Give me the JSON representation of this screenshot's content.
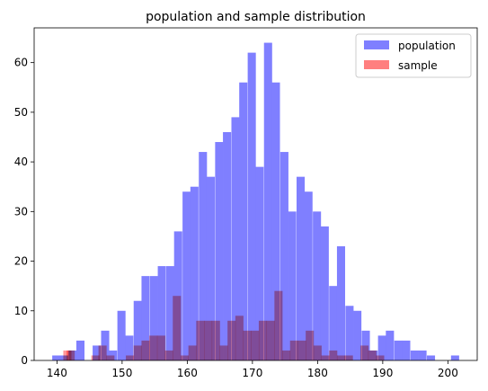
{
  "chart_data": {
    "type": "bar",
    "title": "population and sample distribution",
    "xlabel": "",
    "ylabel": "",
    "xlim": [
      136.5,
      204.5
    ],
    "ylim": [
      0,
      67
    ],
    "bin_width": 1.25,
    "xticks": [
      140,
      150,
      160,
      170,
      180,
      190,
      200
    ],
    "yticks": [
      0,
      10,
      20,
      30,
      40,
      50,
      60
    ],
    "grid": false,
    "legend": "top-right",
    "series": [
      {
        "name": "population",
        "color": "#7f7fff",
        "x": [
          139.9,
          141.1,
          142.4,
          143.6,
          144.9,
          146.1,
          147.4,
          148.6,
          149.9,
          151.1,
          152.4,
          153.6,
          154.9,
          156.1,
          157.4,
          158.6,
          159.9,
          161.1,
          162.4,
          163.6,
          164.9,
          166.1,
          167.4,
          168.6,
          169.9,
          171.1,
          172.4,
          173.6,
          174.9,
          176.1,
          177.4,
          178.6,
          179.9,
          181.1,
          182.4,
          183.6,
          184.9,
          186.1,
          187.4,
          188.6,
          189.9,
          191.1,
          192.4,
          193.6,
          194.9,
          196.1,
          197.4,
          198.6,
          199.9,
          201.1
        ],
        "values": [
          1,
          1,
          2,
          4,
          0,
          3,
          6,
          2,
          10,
          5,
          12,
          17,
          17,
          19,
          19,
          26,
          34,
          35,
          42,
          37,
          44,
          46,
          49,
          56,
          62,
          39,
          64,
          56,
          42,
          30,
          37,
          34,
          30,
          27,
          15,
          23,
          11,
          10,
          6,
          2,
          5,
          6,
          4,
          4,
          2,
          2,
          1,
          0,
          0,
          1
        ]
      },
      {
        "name": "sample",
        "color": "#ff7f7f",
        "x": [
          141.6,
          142.1,
          145.9,
          147.0,
          148.2,
          151.2,
          152.4,
          153.6,
          154.8,
          156.0,
          157.2,
          158.4,
          159.6,
          160.8,
          162.0,
          163.2,
          164.4,
          165.6,
          166.8,
          168.0,
          169.2,
          170.4,
          171.6,
          172.8,
          174.0,
          175.2,
          176.4,
          177.6,
          178.8,
          180.0,
          181.2,
          182.4,
          183.6,
          184.8,
          186.0,
          187.2,
          188.4,
          189.6
        ],
        "values": [
          2,
          2,
          1,
          3,
          1,
          1,
          3,
          4,
          5,
          5,
          2,
          13,
          1,
          3,
          8,
          8,
          8,
          3,
          8,
          9,
          6,
          6,
          8,
          8,
          14,
          2,
          4,
          4,
          6,
          3,
          1,
          2,
          1,
          1,
          0,
          3,
          2,
          1
        ]
      }
    ]
  }
}
